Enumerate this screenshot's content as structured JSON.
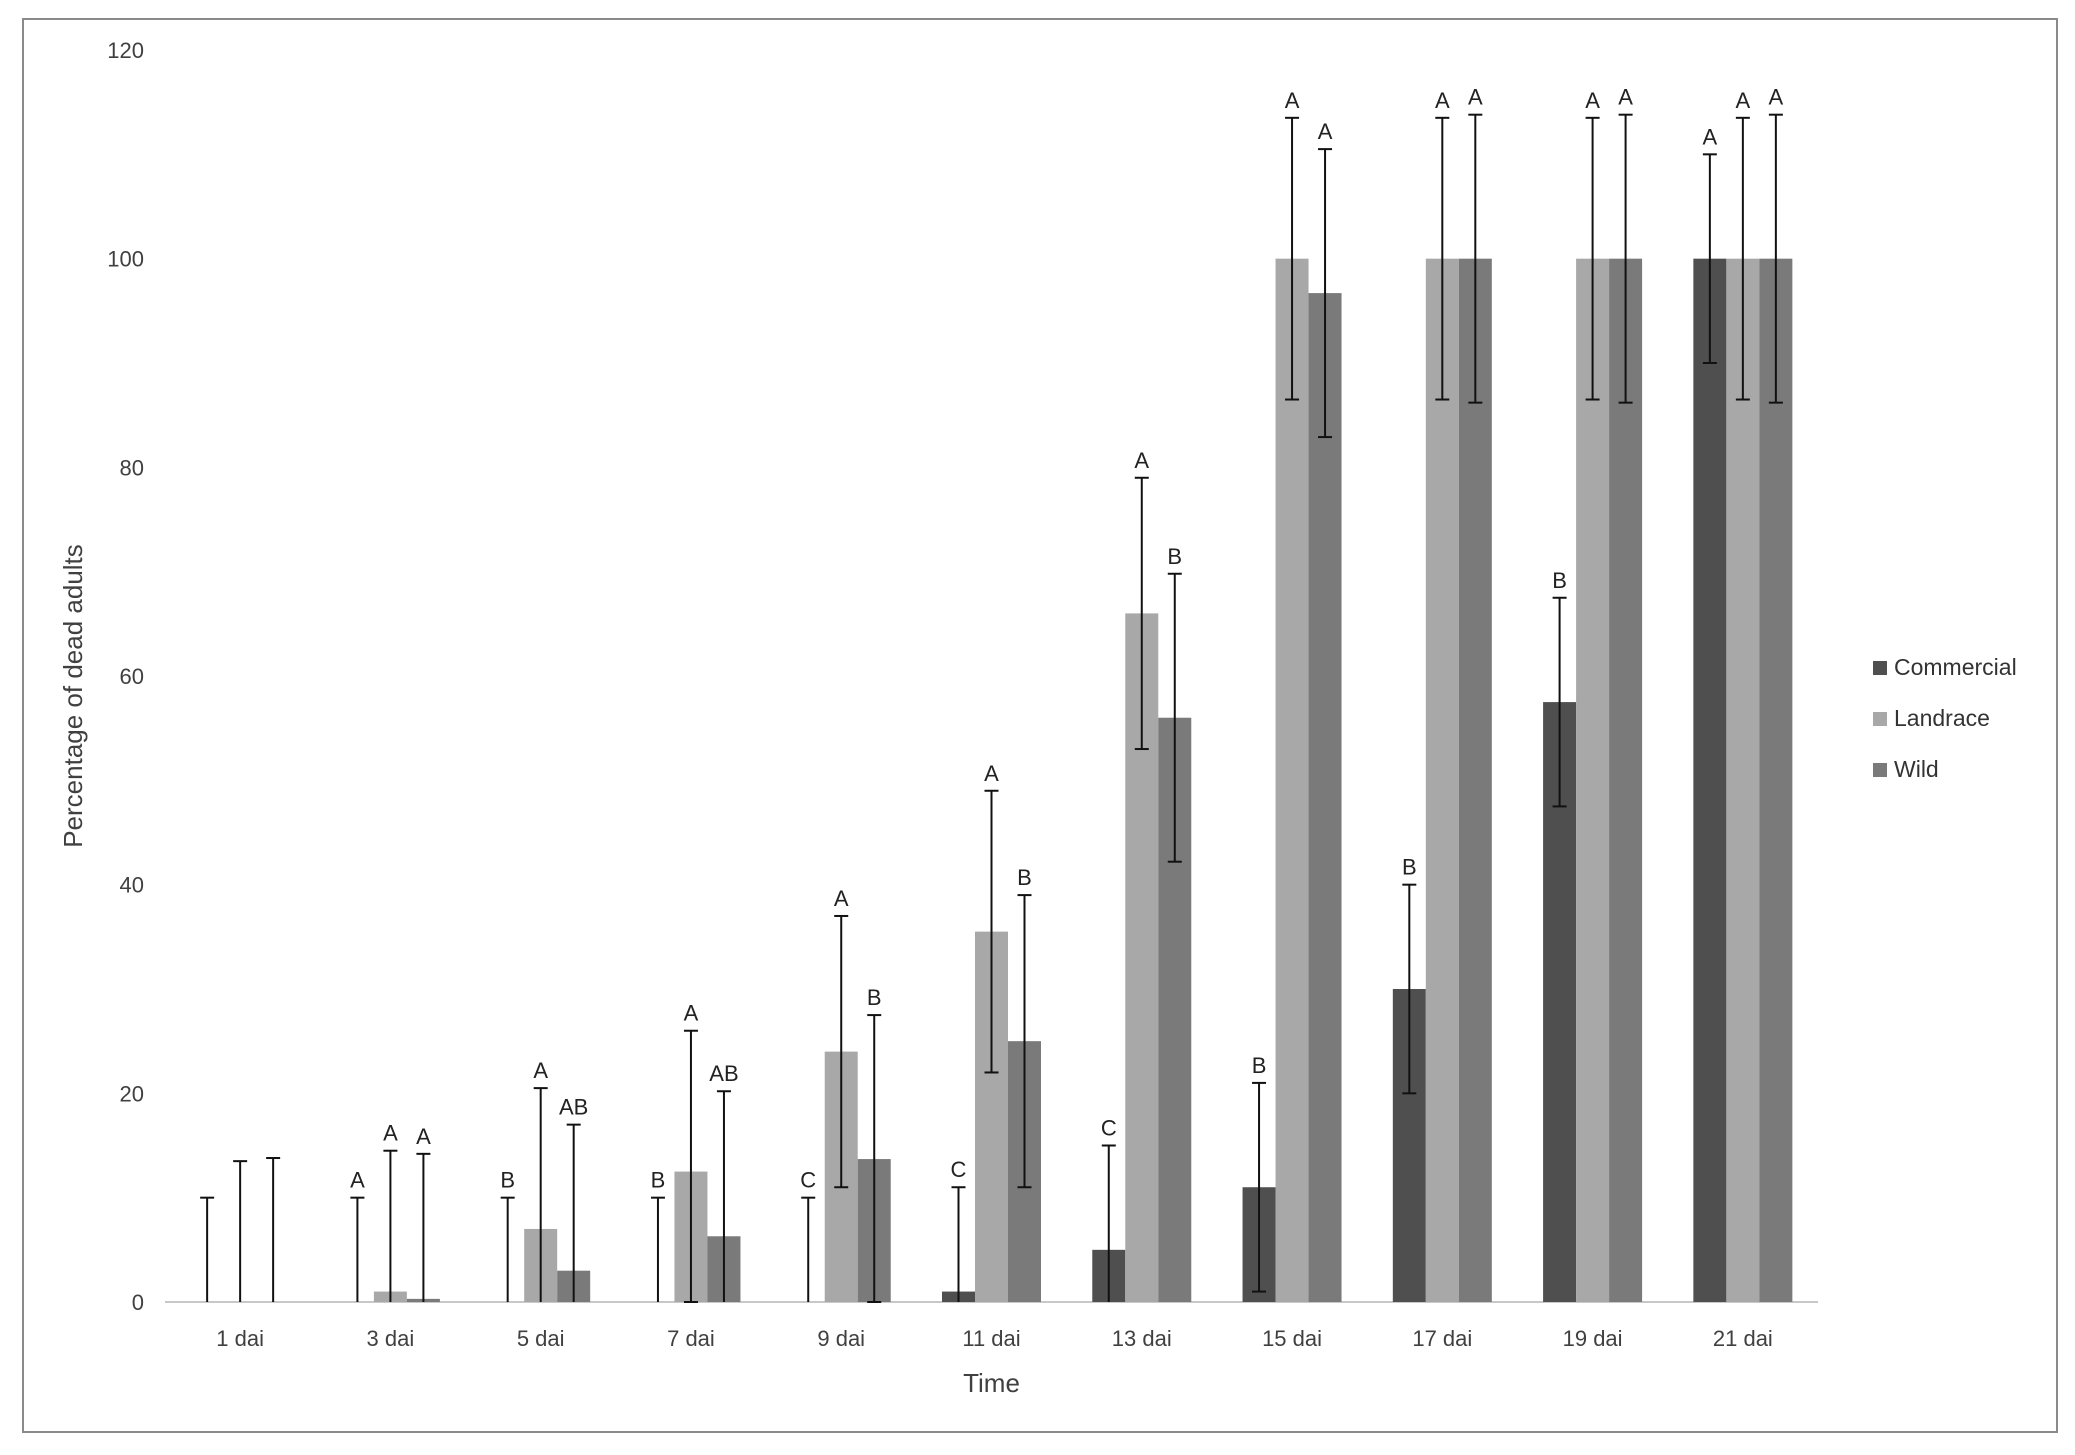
{
  "chart_data": {
    "type": "bar",
    "title": "",
    "xlabel": "Time",
    "ylabel": "Percentage of dead adults",
    "ylim": [
      0,
      120
    ],
    "yticks": [
      0,
      20,
      40,
      60,
      80,
      100,
      120
    ],
    "grid": false,
    "legend_position": "right",
    "categories": [
      "1 dai",
      "3 dai",
      "5 dai",
      "7 dai",
      "9 dai",
      "11 dai",
      "13 dai",
      "15 dai",
      "17 dai",
      "19 dai",
      "21 dai"
    ],
    "series": [
      {
        "name": "Commercial",
        "color": "#4f4f4f",
        "values": [
          0,
          0,
          0,
          0,
          0,
          1,
          5,
          11,
          30,
          57.5,
          100
        ],
        "error": [
          10,
          10,
          10,
          10,
          10,
          11,
          15,
          21,
          40,
          67.5,
          110
        ],
        "letters": [
          "",
          "A",
          "B",
          "B",
          "C",
          "C",
          "C",
          "B",
          "B",
          "B",
          "A"
        ]
      },
      {
        "name": "Landrace",
        "color": "#a8a8a8",
        "values": [
          0,
          1,
          7,
          12.5,
          24,
          35.5,
          66,
          100,
          100,
          100,
          100
        ],
        "error": [
          13.5,
          14.5,
          20.5,
          26,
          37,
          49,
          79,
          113.5,
          113.5,
          113.5,
          113.5
        ],
        "letters": [
          "",
          "A",
          "A",
          "A",
          "A",
          "A",
          "A",
          "A",
          "A",
          "A",
          "A"
        ]
      },
      {
        "name": "Wild",
        "color": "#7a7a7a",
        "values": [
          0,
          0.3,
          3,
          6.3,
          13.7,
          25,
          56,
          96.7,
          100,
          100,
          100
        ],
        "error": [
          13.8,
          14.2,
          17,
          20.2,
          27.5,
          39,
          69.8,
          110.5,
          113.8,
          113.8,
          113.8
        ],
        "letters": [
          "",
          "A",
          "AB",
          "AB",
          "B",
          "B",
          "B",
          "A",
          "A",
          "A",
          "A"
        ]
      }
    ]
  }
}
